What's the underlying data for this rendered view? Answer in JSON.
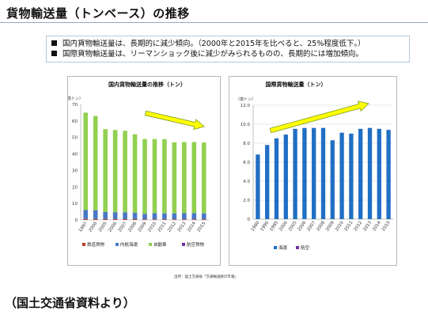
{
  "page": {
    "title": "貨物輸送量（トンベース）の推移",
    "bullets": [
      "国内貨物輸送量は、長期的に減少傾向。（2000年と2015年を比べると、25%程度低下。）",
      "国際貨物輸送量は、リーマンショック後に減少がみられるものの、長期的には増加傾向。"
    ],
    "source": "出所：国土交通省「交通輸送統計年報」",
    "footer": "（国土交通省資料より）"
  },
  "chart_data": [
    {
      "type": "bar",
      "stacked": true,
      "title": "国内貨物輸送量の推移（トン）",
      "ylabel": "（億トン）",
      "ylim": [
        0,
        70
      ],
      "yticks": [
        0,
        10,
        20,
        30,
        40,
        50,
        60,
        70
      ],
      "grid": false,
      "legend_position": "bottom",
      "categories": [
        "1997",
        "2000",
        "2005",
        "2006",
        "2007",
        "2008",
        "2009",
        "2010",
        "2011",
        "2012",
        "2013",
        "2014",
        "2015"
      ],
      "series": [
        {
          "name": "鉄道貨物",
          "color": "#c0392b",
          "values": [
            0.6,
            0.6,
            0.5,
            0.5,
            0.5,
            0.5,
            0.4,
            0.4,
            0.4,
            0.4,
            0.4,
            0.4,
            0.4
          ]
        },
        {
          "name": "内航海運",
          "color": "#4a78c4",
          "values": [
            5.4,
            5.3,
            4.3,
            4.2,
            4.1,
            3.8,
            3.3,
            3.7,
            3.6,
            3.6,
            3.8,
            3.7,
            3.6
          ]
        },
        {
          "name": "自動車",
          "color": "#92d050",
          "values": [
            59.0,
            57.1,
            50.2,
            49.8,
            49.4,
            47.6,
            45.3,
            44.9,
            44.9,
            43.0,
            43.0,
            43.1,
            42.9
          ]
        },
        {
          "name": "航空貨物",
          "color": "#7030a0",
          "values": [
            0.01,
            0.01,
            0.01,
            0.01,
            0.01,
            0.01,
            0.01,
            0.01,
            0.01,
            0.01,
            0.01,
            0.01,
            0.01
          ]
        }
      ],
      "annotation": "downward-trend-arrow",
      "trend_arrow_color": "#ffff00"
    },
    {
      "type": "bar",
      "stacked": true,
      "title": "国際貨物輸送量（トン）",
      "ylabel": "（億トン）",
      "ylim": [
        0,
        12
      ],
      "yticks": [
        0,
        2.0,
        4.0,
        6.0,
        8.0,
        10.0,
        12.0
      ],
      "ytick_labels": [
        "0",
        "2.0",
        "4.0",
        "6.0",
        "8.0",
        "10.0",
        "12.0"
      ],
      "grid": true,
      "legend_position": "bottom",
      "categories": [
        "1980",
        "1990",
        "1995",
        "2000",
        "2005",
        "2006",
        "2007",
        "2008",
        "2009",
        "2010",
        "2011",
        "2012",
        "2013",
        "2014",
        "2015"
      ],
      "series": [
        {
          "name": "海運",
          "color": "#1f6fc4",
          "values": [
            6.8,
            7.8,
            8.5,
            8.9,
            9.5,
            9.6,
            9.6,
            9.6,
            8.3,
            9.1,
            9.0,
            9.5,
            9.6,
            9.5,
            9.4
          ]
        },
        {
          "name": "航空",
          "color": "#7030a0",
          "values": [
            0.01,
            0.01,
            0.01,
            0.01,
            0.01,
            0.01,
            0.01,
            0.01,
            0.01,
            0.01,
            0.01,
            0.01,
            0.01,
            0.01,
            0.01
          ]
        }
      ],
      "annotation": "upward-trend-arrow",
      "trend_arrow_color": "#ffff00"
    }
  ]
}
